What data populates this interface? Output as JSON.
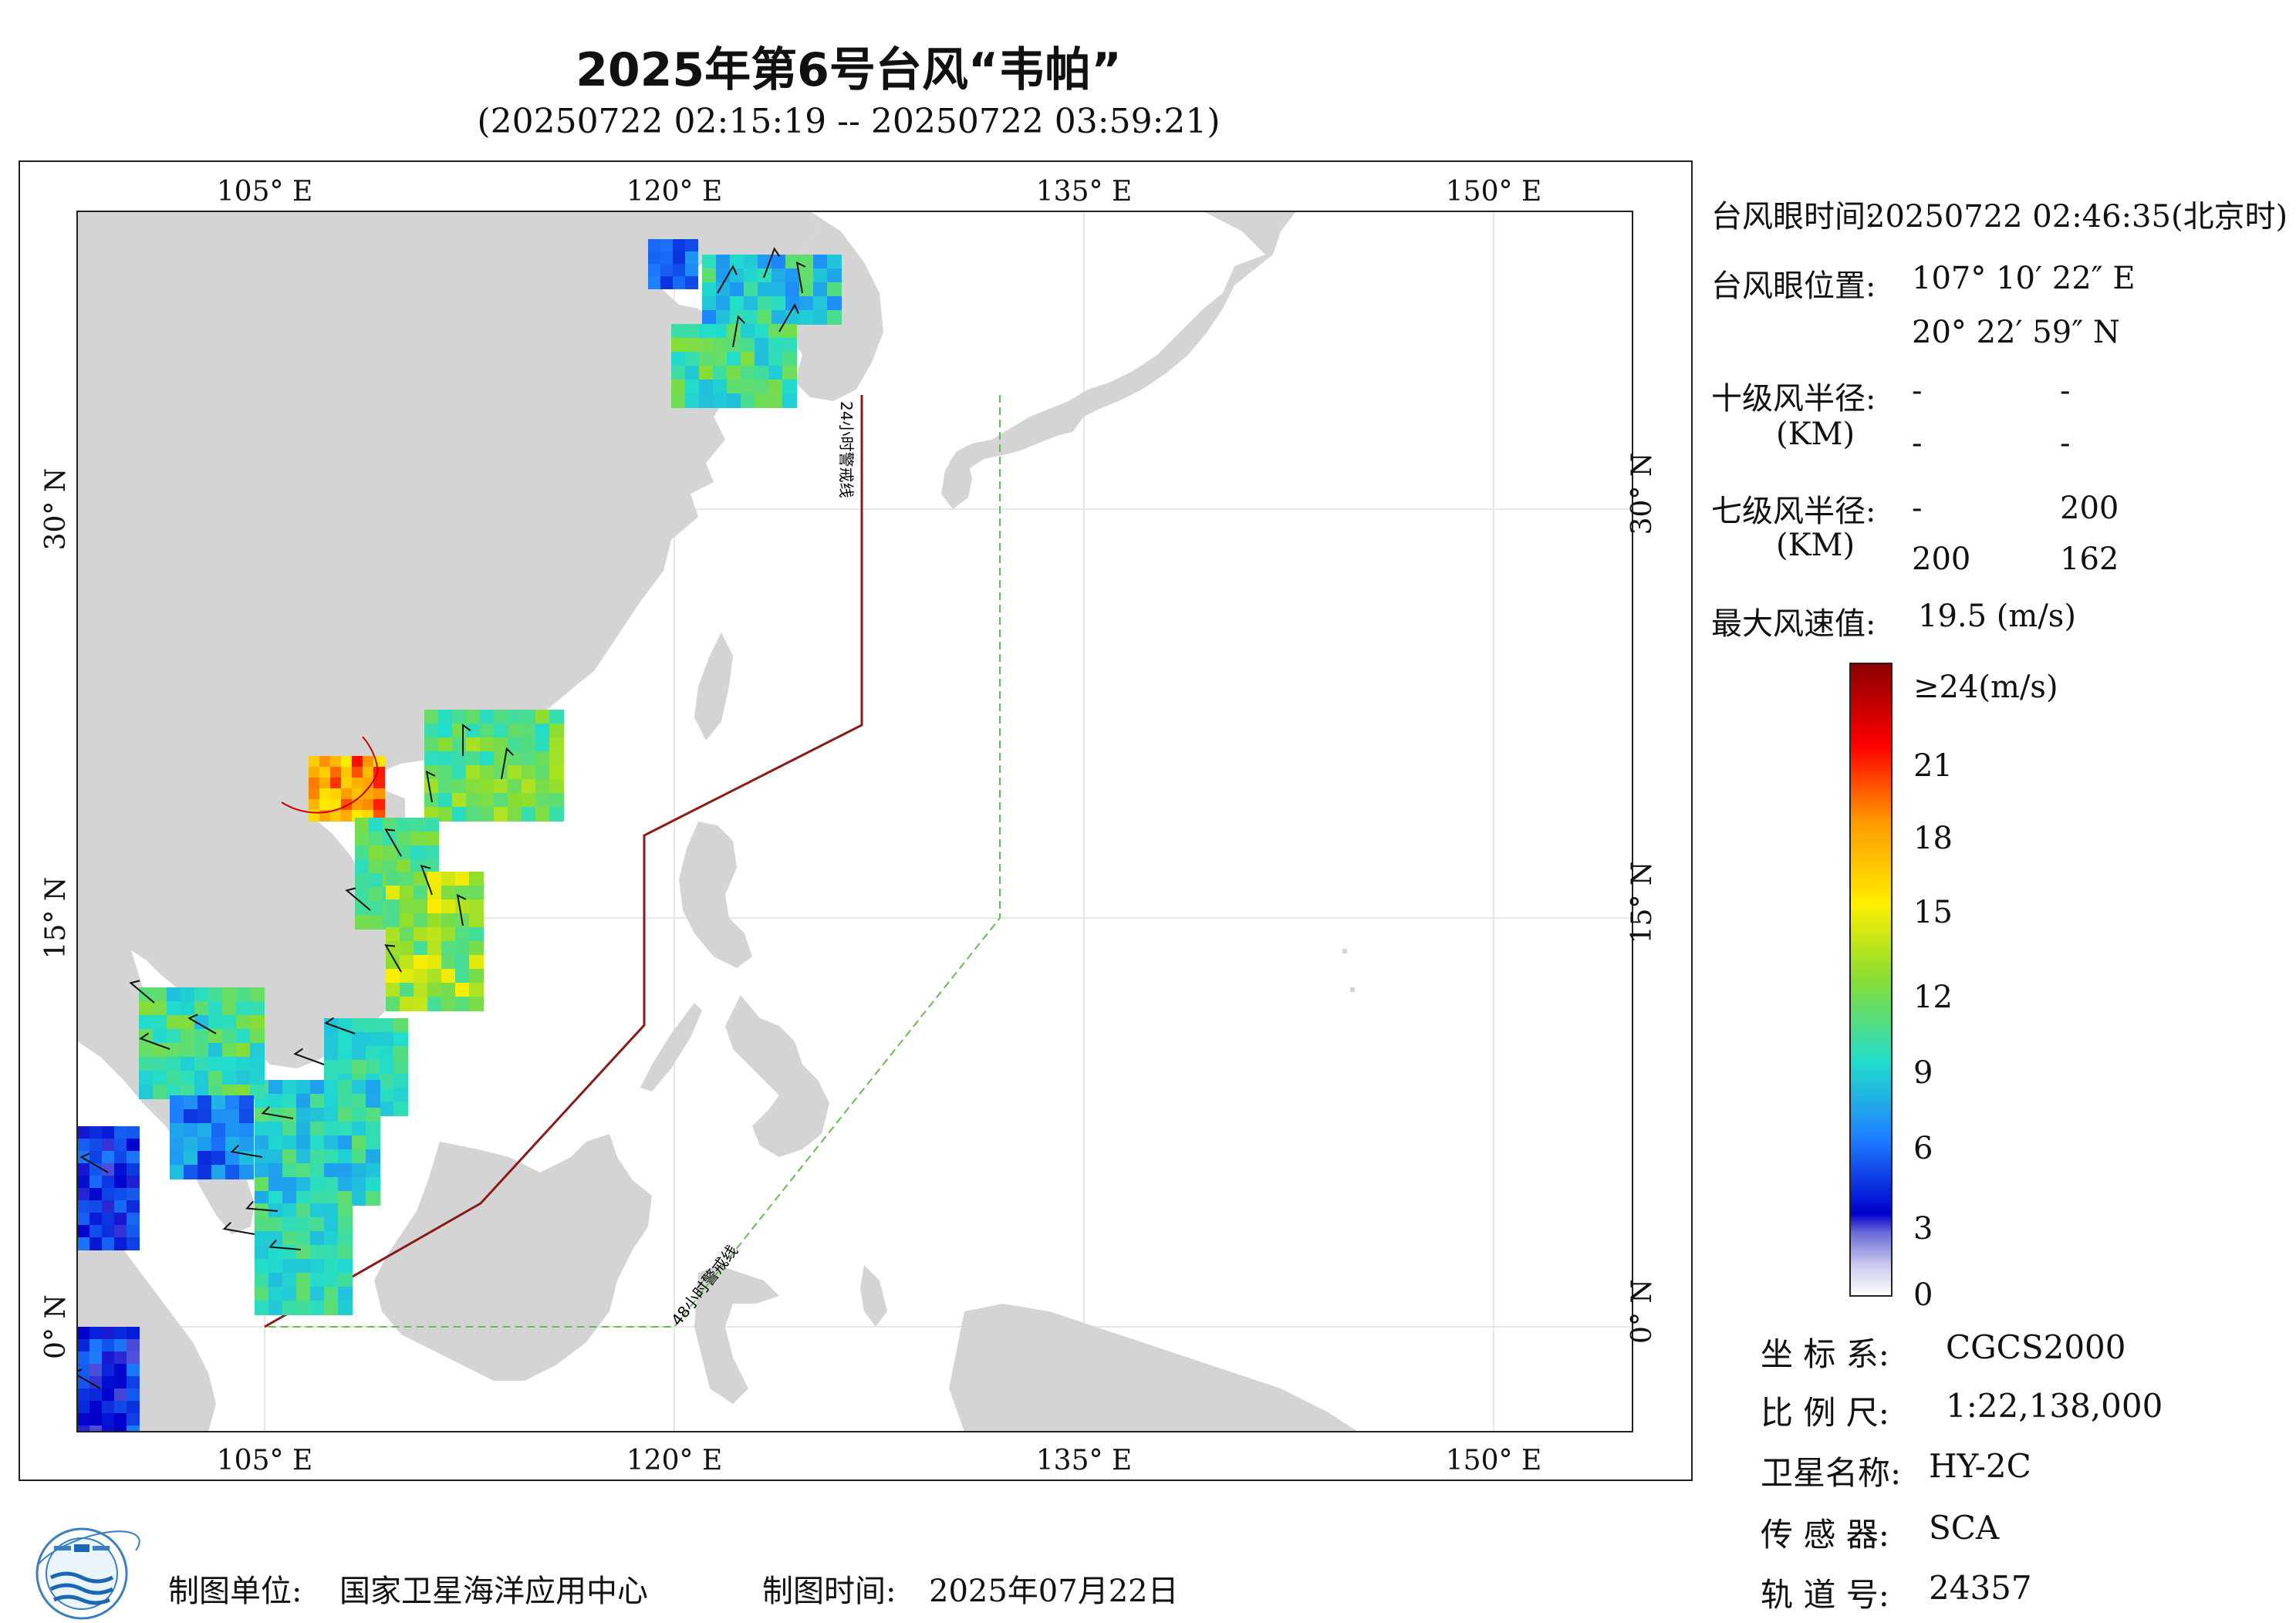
{
  "header": {
    "title": "2025年第6号台风“韦帕”",
    "subtitle": "(20250722 02:15:19 -- 20250722 03:59:21)"
  },
  "map": {
    "top_lon_ticks": [
      "105° E",
      "120° E",
      "135° E",
      "150° E"
    ],
    "bottom_lon_ticks": [
      "105° E",
      "120° E",
      "135° E",
      "150° E"
    ],
    "left_lat_ticks": [
      "30° N",
      "15° N",
      "0° N"
    ],
    "right_lat_ticks": [
      "30° N",
      "15° N",
      "0° N"
    ],
    "line_24h_label": "24小时警戒线",
    "line_48h_label": "48小时警戒线",
    "colors": {
      "land": "#d4d4d4",
      "line_24h": "#8b1a1a",
      "line_48h": "#66bb55",
      "eye_circle": "#cc0000"
    }
  },
  "info": {
    "eye_time_label": "台风眼时间:",
    "eye_time_value": "20250722 02:46:35(北京时)",
    "eye_pos_label": "台风眼位置:",
    "eye_lon": "107° 10′ 22″ E",
    "eye_lat": "20° 22′ 59″ N",
    "r10_label": "十级风半径:",
    "r10_unit": "(KM)",
    "r10_values": [
      "-",
      "-",
      "-",
      "-"
    ],
    "r7_label": "七级风半径:",
    "r7_unit": "(KM)",
    "r7_values": [
      "-",
      "200",
      "200",
      "162"
    ],
    "max_wind_label": "最大风速值:",
    "max_wind_value": "19.5  (m/s)"
  },
  "colorbar": {
    "labels": [
      "≥24(m/s)",
      "21",
      "18",
      "15",
      "12",
      "9",
      "6",
      "3",
      "0"
    ],
    "colors": [
      "#8b0000",
      "#ff0000",
      "#ff9900",
      "#ffee00",
      "#88dd33",
      "#22ddcc",
      "#1e80ff",
      "#0000cc",
      "#ffffff"
    ]
  },
  "meta": {
    "coord_label": "坐 标 系:",
    "coord_value": "CGCS2000",
    "scale_label": "比 例 尺:",
    "scale_value": "1:22,138,000",
    "satellite_label": "卫星名称:",
    "satellite_value": "HY-2C",
    "sensor_label": "传 感 器:",
    "sensor_value": "SCA",
    "orbit_label": "轨 道 号:",
    "orbit_value": "24357"
  },
  "footer": {
    "unit_label": "制图单位:",
    "unit_value": "国家卫星海洋应用中心",
    "time_label": "制图时间:",
    "time_value": "2025年07月22日"
  }
}
